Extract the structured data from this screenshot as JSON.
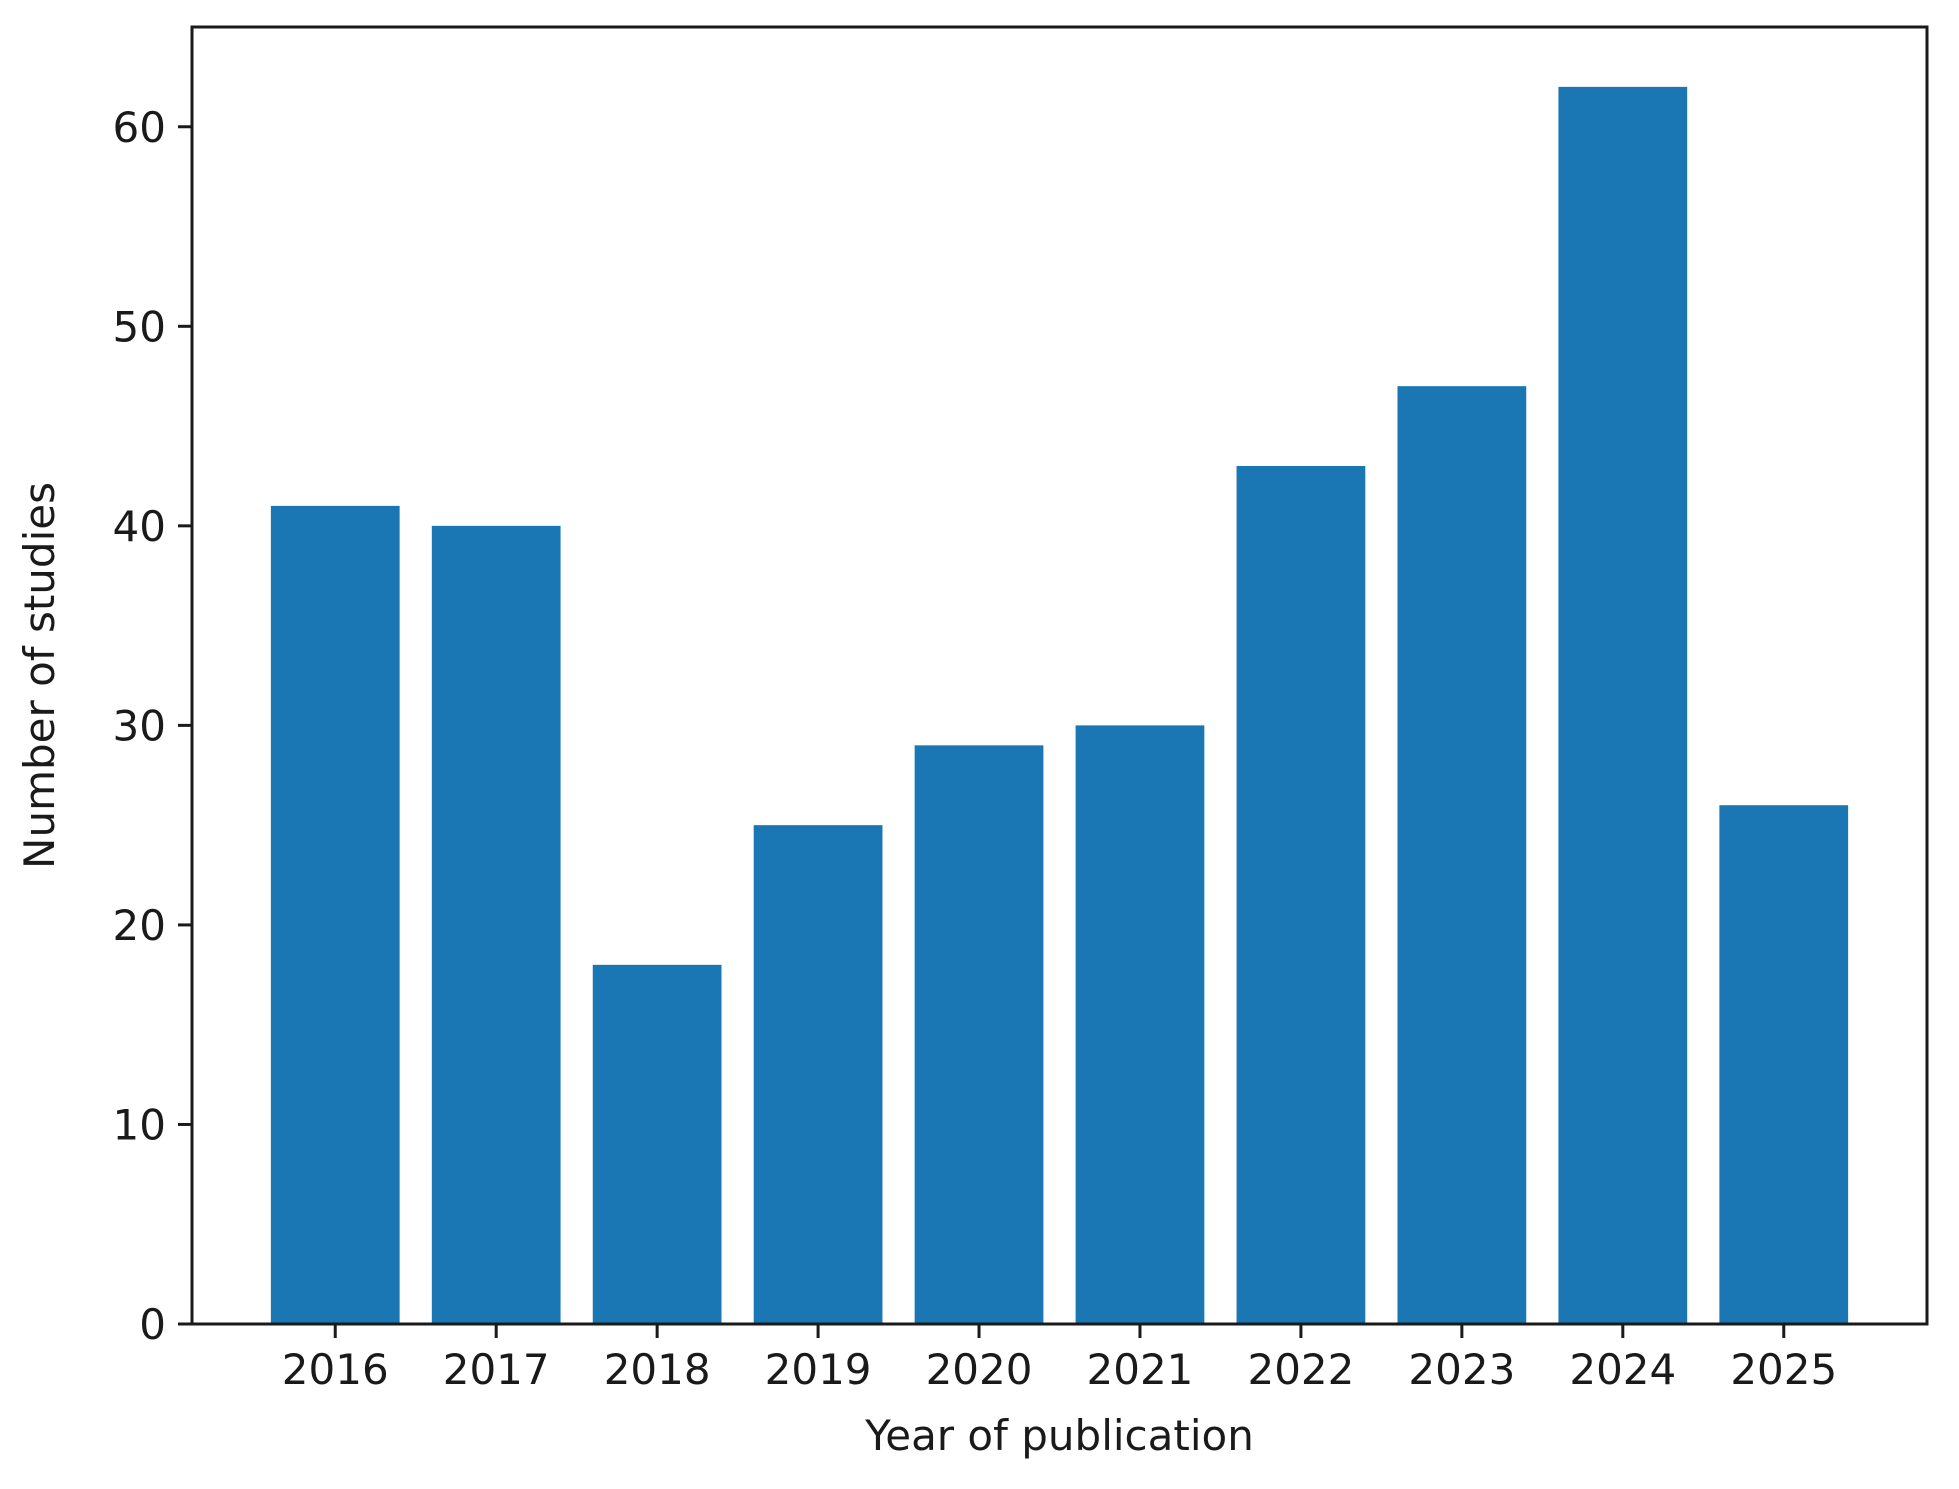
{
  "chart_data": {
    "type": "bar",
    "title": "",
    "xlabel": "Year of publication",
    "ylabel": "Number of studies",
    "categories": [
      "2016",
      "2017",
      "2018",
      "2019",
      "2020",
      "2021",
      "2022",
      "2023",
      "2024",
      "2025"
    ],
    "values": [
      41,
      40,
      18,
      25,
      29,
      30,
      43,
      47,
      62,
      26
    ],
    "ylim": [
      0,
      65
    ],
    "yticks": [
      0,
      10,
      20,
      30,
      40,
      50,
      60
    ],
    "grid": false,
    "legend": "none",
    "colors": {
      "bar": "#1b77b4",
      "axis": "#1a1a1a",
      "text": "#1a1a1a",
      "background": "#ffffff"
    }
  }
}
